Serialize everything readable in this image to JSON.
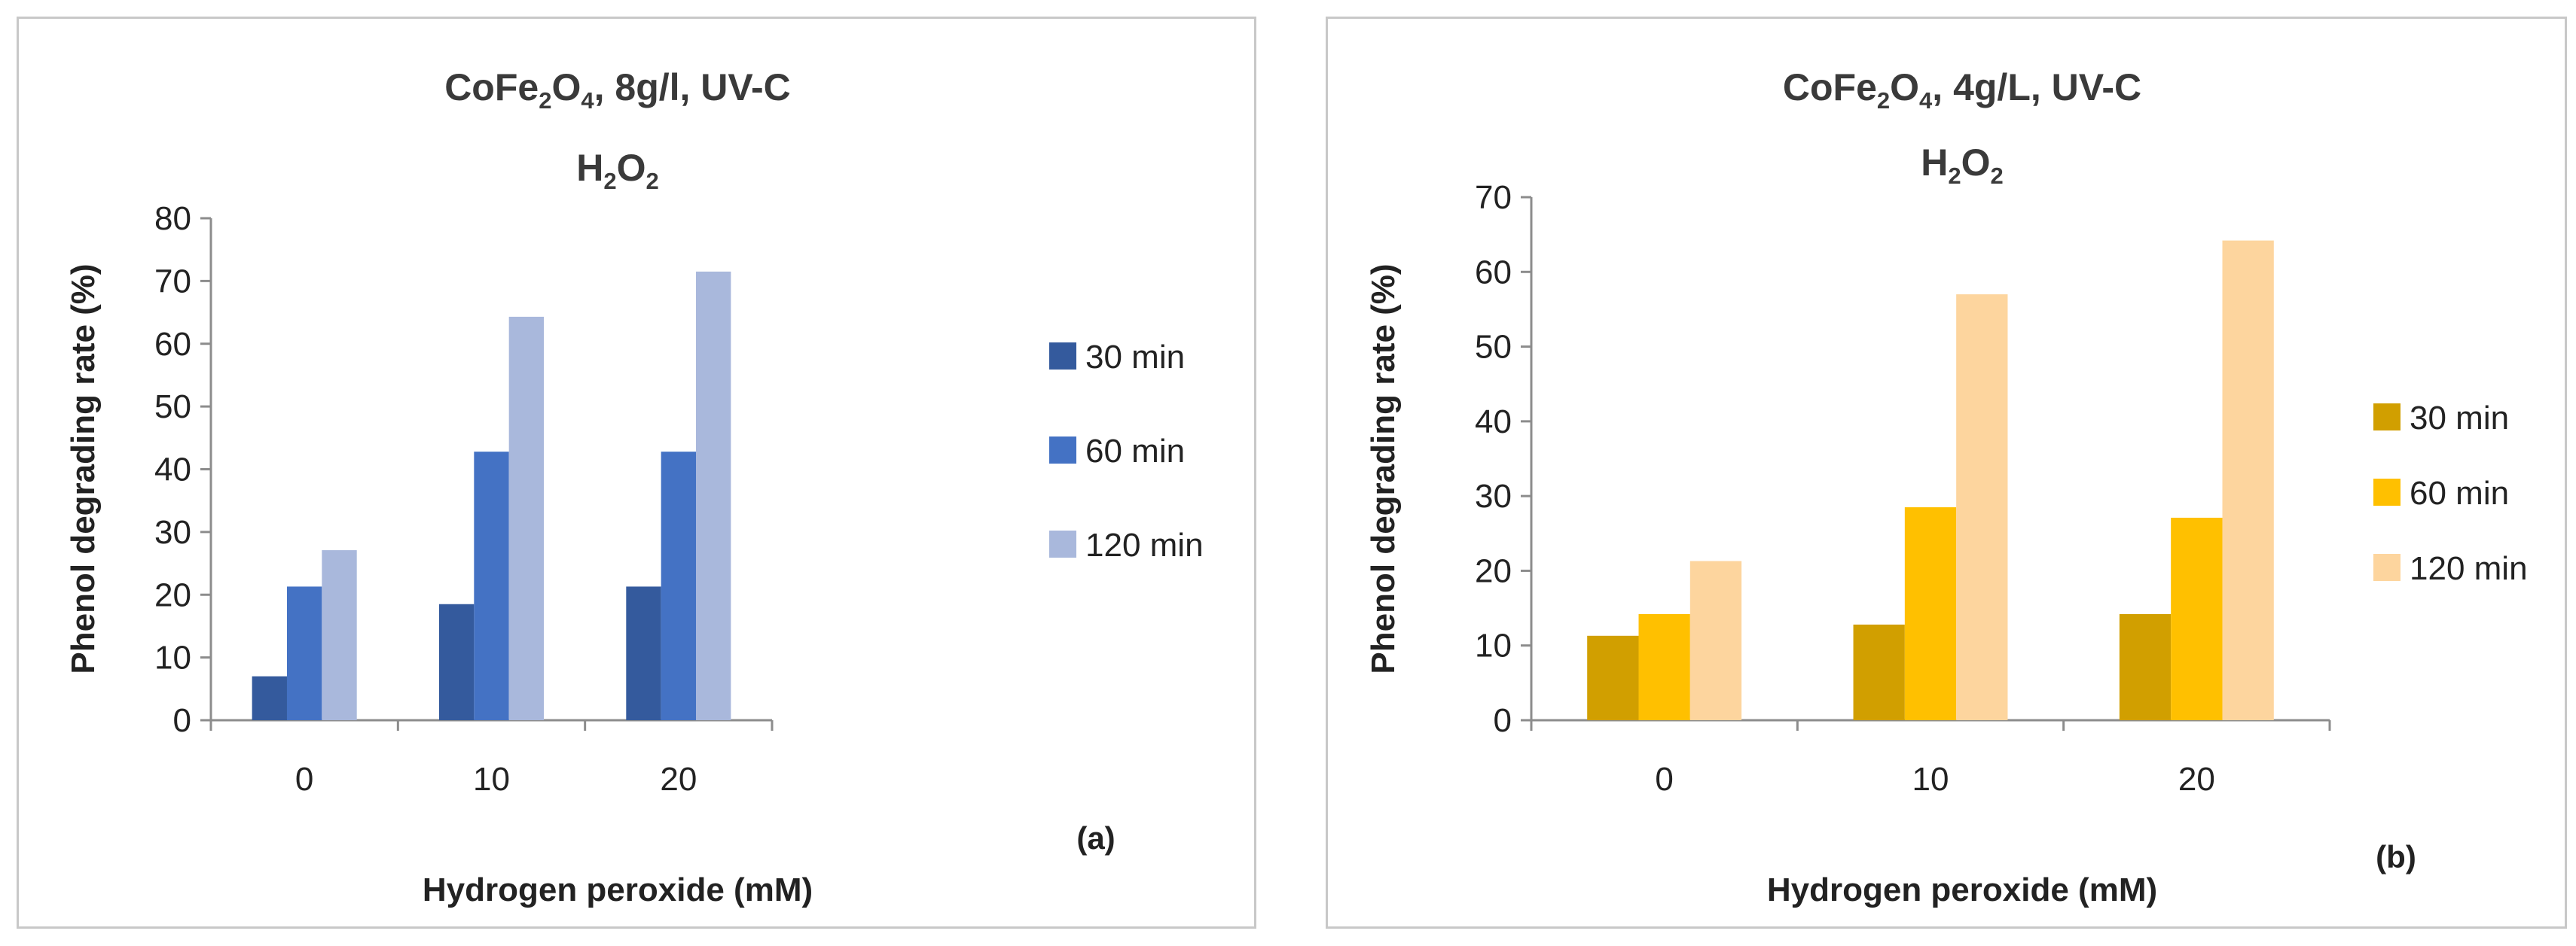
{
  "chart_data": [
    {
      "type": "bar",
      "title_parts": [
        "CoFe",
        "2",
        "O",
        "4",
        ", 8g/l, UV-C"
      ],
      "subtitle_parts": [
        "H",
        "2",
        "O",
        "2"
      ],
      "categories": [
        "0",
        "10",
        "20"
      ],
      "series": [
        {
          "name": "30 min",
          "color": "#345a9d",
          "values": [
            7,
            18.5,
            21.3
          ]
        },
        {
          "name": "60 min",
          "color": "#4472c4",
          "values": [
            21.3,
            42.8,
            42.8
          ]
        },
        {
          "name": "120 min",
          "color": "#a9b8dc",
          "values": [
            27.1,
            64.3,
            71.5
          ]
        }
      ],
      "xlabel": "Hydrogen peroxide (mM)",
      "ylabel": "Phenol degrading rate (%)",
      "ylim": [
        0,
        80
      ],
      "yticks": [
        "0",
        "10",
        "20",
        "30",
        "40",
        "50",
        "60",
        "70",
        "80"
      ],
      "panel_label": "(a)",
      "legend_position": "right",
      "grid": false
    },
    {
      "type": "bar",
      "title_parts": [
        "CoFe",
        "2",
        "O",
        "4",
        ", 4g/L, UV-C"
      ],
      "subtitle_parts": [
        "H",
        "2",
        "O",
        "2"
      ],
      "categories": [
        "0",
        "10",
        "20"
      ],
      "series": [
        {
          "name": "30 min",
          "color": "#d19f00",
          "values": [
            11.3,
            12.8,
            14.2
          ]
        },
        {
          "name": "60 min",
          "color": "#ffc000",
          "values": [
            14.2,
            28.5,
            27.1
          ]
        },
        {
          "name": "120 min",
          "color": "#fdd59e",
          "values": [
            21.3,
            57,
            64.2
          ]
        }
      ],
      "xlabel": "Hydrogen peroxide (mM)",
      "ylabel": "Phenol degrading rate (%)",
      "ylim": [
        0,
        70
      ],
      "yticks": [
        "0",
        "10",
        "20",
        "30",
        "40",
        "50",
        "60",
        "70"
      ],
      "panel_label": "(b)",
      "legend_position": "right",
      "grid": false
    }
  ]
}
